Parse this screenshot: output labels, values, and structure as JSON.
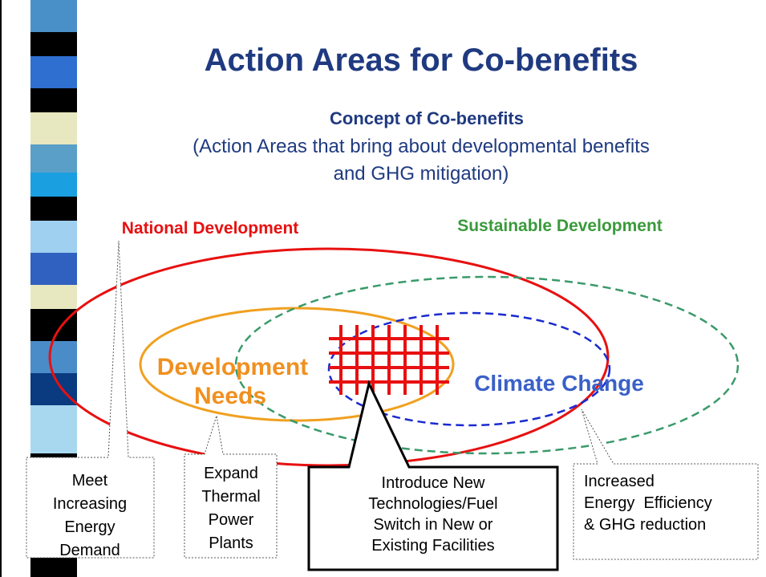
{
  "title": "Action Areas for Co-benefits",
  "concept": {
    "heading": "Concept of Co-benefits",
    "lines": [
      "(Action Areas that bring about developmental benefits",
      "and GHG mitigation)"
    ]
  },
  "labels": {
    "national_development": "National Development",
    "sustainable_development": "Sustainable Development",
    "development_needs": [
      "Development",
      "Needs"
    ],
    "climate_change": "Climate Change"
  },
  "callouts": [
    {
      "lines": [
        "Meet",
        "Increasing",
        "Energy",
        "Demand"
      ]
    },
    {
      "lines": [
        "Expand",
        "Thermal",
        "Power",
        "Plants"
      ]
    },
    {
      "lines": [
        "Introduce New",
        "Technologies/Fuel",
        "Switch in New or",
        "Existing Facilities"
      ]
    },
    {
      "lines": [
        "Increased",
        "Energy  Efficiency",
        "& GHG reduction"
      ]
    }
  ]
}
